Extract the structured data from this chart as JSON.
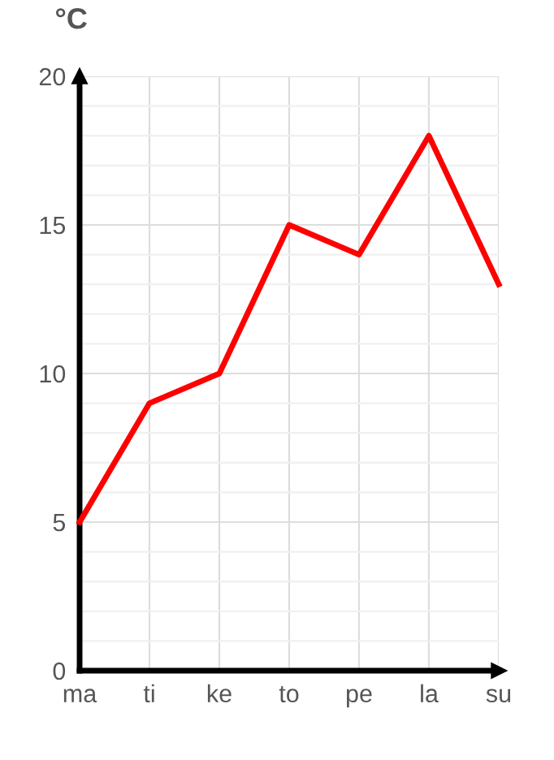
{
  "chart_data": {
    "type": "line",
    "ylabel": "°C",
    "categories": [
      "ma",
      "ti",
      "ke",
      "to",
      "pe",
      "la",
      "su"
    ],
    "series": [
      {
        "color": "#ff0000",
        "values": [
          5,
          9,
          10,
          15,
          14,
          18,
          13
        ]
      }
    ],
    "ylim": [
      0,
      20
    ],
    "yticks": [
      0,
      {
        "value": 1,
        "label": null
      },
      {
        "value": 2,
        "label": null
      },
      {
        "value": 3,
        "label": null
      },
      {
        "value": 4,
        "label": null
      },
      5,
      {
        "value": 6,
        "label": null
      },
      {
        "value": 7,
        "label": null
      },
      {
        "value": 8,
        "label": null
      },
      {
        "value": 9,
        "label": null
      },
      10,
      {
        "value": 11,
        "label": null
      },
      {
        "value": 12,
        "label": null
      },
      {
        "value": 13,
        "label": null
      },
      {
        "value": 14,
        "label": null
      },
      15,
      {
        "value": 16,
        "label": null
      },
      {
        "value": 17,
        "label": null
      },
      {
        "value": 18,
        "label": null
      },
      {
        "value": 19,
        "label": null
      },
      20
    ],
    "grid": true,
    "marker": "none",
    "line_style": "solid"
  }
}
